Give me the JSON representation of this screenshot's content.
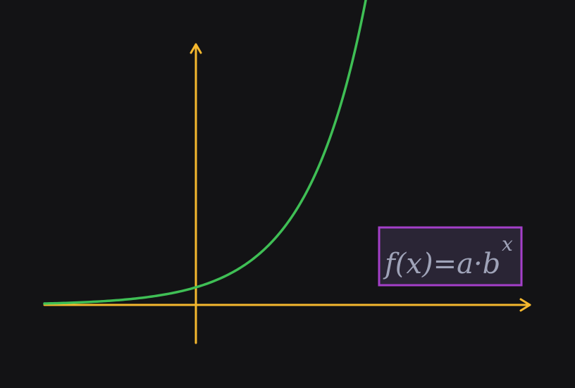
{
  "colors": {
    "background": "#131315",
    "axes": "#f5b82e",
    "curve": "#3fbf55",
    "formula_border": "#a43fc9",
    "formula_fill": "#2a2535",
    "formula_text": "#9fa3b8"
  },
  "formula": {
    "base": "f(x)=a·b",
    "exponent": "x"
  }
}
